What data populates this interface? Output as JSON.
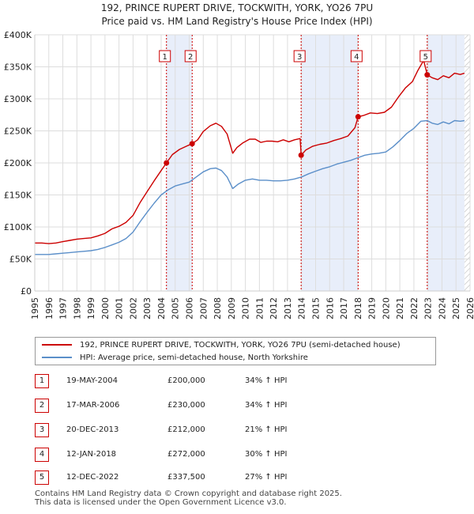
{
  "title": {
    "line1": "192, PRINCE RUPERT DRIVE, TOCKWITH, YORK, YO26 7PU",
    "line2": "Price paid vs. HM Land Registry's House Price Index (HPI)"
  },
  "chart_data": {
    "type": "line",
    "title": "192, PRINCE RUPERT DRIVE, TOCKWITH, YORK, YO26 7PU",
    "subtitle": "Price paid vs. HM Land Registry's House Price Index (HPI)",
    "xlabel": "",
    "ylabel": "",
    "xlim": [
      1995,
      2026
    ],
    "ylim": [
      0,
      400000
    ],
    "x_ticks": [
      "1995",
      "1996",
      "1997",
      "1998",
      "1999",
      "2000",
      "2001",
      "2002",
      "2003",
      "2004",
      "2005",
      "2006",
      "2007",
      "2008",
      "2009",
      "2010",
      "2011",
      "2012",
      "2013",
      "2014",
      "2015",
      "2016",
      "2017",
      "2018",
      "2019",
      "2020",
      "2021",
      "2022",
      "2023",
      "2024",
      "2025",
      "2026"
    ],
    "y_ticks": [
      {
        "value": 0,
        "label": "£0"
      },
      {
        "value": 50000,
        "label": "£50K"
      },
      {
        "value": 100000,
        "label": "£100K"
      },
      {
        "value": 150000,
        "label": "£150K"
      },
      {
        "value": 200000,
        "label": "£200K"
      },
      {
        "value": 250000,
        "label": "£250K"
      },
      {
        "value": 300000,
        "label": "£300K"
      },
      {
        "value": 350000,
        "label": "£350K"
      },
      {
        "value": 400000,
        "label": "£400K"
      }
    ],
    "grid": true,
    "series": [
      {
        "name": "192, PRINCE RUPERT DRIVE, TOCKWITH, YORK, YO26 7PU (semi-detached house)",
        "color": "#cc0000",
        "x": [
          1995,
          1995.5,
          1996,
          1996.5,
          1997,
          1997.5,
          1998,
          1998.5,
          1999,
          1999.5,
          2000,
          2000.5,
          2001,
          2001.5,
          2002,
          2002.5,
          2003,
          2003.5,
          2004,
          2004.38,
          2004.8,
          2005.3,
          2005.8,
          2006.21,
          2006.6,
          2007,
          2007.5,
          2007.9,
          2008.3,
          2008.7,
          2009.1,
          2009.4,
          2009.8,
          2010.3,
          2010.7,
          2011.1,
          2011.5,
          2011.9,
          2012.3,
          2012.7,
          2013.1,
          2013.5,
          2013.9,
          2013.97,
          2014.3,
          2014.8,
          2015.3,
          2015.8,
          2016.3,
          2016.8,
          2017.3,
          2017.8,
          2018.03,
          2018.4,
          2018.9,
          2019.4,
          2019.9,
          2020.4,
          2020.9,
          2021.4,
          2021.9,
          2022.3,
          2022.7,
          2022.95,
          2023.3,
          2023.7,
          2024.1,
          2024.5,
          2024.9,
          2025.3,
          2025.6
        ],
        "y": [
          75000,
          75000,
          74000,
          75000,
          77000,
          79000,
          81000,
          82000,
          83000,
          86000,
          90000,
          97000,
          101000,
          107000,
          118000,
          138000,
          155000,
          172000,
          188000,
          200000,
          213000,
          221000,
          226000,
          230000,
          236000,
          249000,
          258000,
          262000,
          257000,
          245000,
          215000,
          224000,
          231000,
          237000,
          237000,
          232000,
          234000,
          234000,
          233000,
          236000,
          233000,
          236000,
          238000,
          212000,
          220000,
          226000,
          229000,
          231000,
          235000,
          238000,
          242000,
          255000,
          272000,
          274000,
          278000,
          277000,
          279000,
          287000,
          303000,
          317000,
          327000,
          345000,
          360000,
          337500,
          333000,
          330000,
          336000,
          333000,
          340000,
          338000,
          340000
        ]
      },
      {
        "name": "HPI: Average price, semi-detached house, North Yorkshire",
        "color": "#5b8fc9",
        "x": [
          1995,
          1995.5,
          1996,
          1996.5,
          1997,
          1997.5,
          1998,
          1998.5,
          1999,
          1999.5,
          2000,
          2000.5,
          2001,
          2001.5,
          2002,
          2002.5,
          2003,
          2003.5,
          2004,
          2004.5,
          2005,
          2005.5,
          2006,
          2006.5,
          2007,
          2007.5,
          2007.9,
          2008.3,
          2008.7,
          2009.1,
          2009.5,
          2010,
          2010.5,
          2011,
          2011.5,
          2012,
          2012.5,
          2013,
          2013.5,
          2014,
          2014.5,
          2015,
          2015.5,
          2016,
          2016.5,
          2017,
          2017.5,
          2018,
          2018.5,
          2019,
          2019.5,
          2020,
          2020.5,
          2021,
          2021.5,
          2022,
          2022.5,
          2022.95,
          2023.3,
          2023.7,
          2024.1,
          2024.5,
          2024.9,
          2025.3,
          2025.6
        ],
        "y": [
          57000,
          57000,
          57000,
          58000,
          59000,
          60000,
          61000,
          62000,
          63000,
          65000,
          68000,
          72000,
          76000,
          82000,
          92000,
          108000,
          123000,
          137000,
          150000,
          158000,
          164000,
          167000,
          170000,
          178000,
          186000,
          191000,
          192000,
          188000,
          178000,
          160000,
          167000,
          173000,
          175000,
          173000,
          173000,
          172000,
          172000,
          173000,
          175000,
          178000,
          183000,
          187000,
          191000,
          194000,
          198000,
          201000,
          204000,
          208000,
          212000,
          214000,
          215000,
          217000,
          225000,
          235000,
          246000,
          254000,
          265000,
          266000,
          262000,
          260000,
          264000,
          261000,
          266000,
          265000,
          266000
        ]
      }
    ],
    "sales": [
      {
        "num": "1",
        "x": 2004.38,
        "price": 200000
      },
      {
        "num": "2",
        "x": 2006.21,
        "price": 230000
      },
      {
        "num": "3",
        "x": 2013.97,
        "price": 212000
      },
      {
        "num": "4",
        "x": 2018.03,
        "price": 272000
      },
      {
        "num": "5",
        "x": 2022.95,
        "price": 337500
      }
    ],
    "shaded_spans": [
      [
        2004.38,
        2006.21
      ],
      [
        2013.97,
        2018.03
      ],
      [
        2022.95,
        2025.6
      ]
    ],
    "forecast_hatch_from": 2025.6
  },
  "legend": {
    "property": "192, PRINCE RUPERT DRIVE, TOCKWITH, YORK, YO26 7PU (semi-detached house)",
    "hpi": "HPI: Average price, semi-detached house, North Yorkshire",
    "property_color": "#cc0000",
    "hpi_color": "#5b8fc9"
  },
  "sales_table": [
    {
      "num": "1",
      "date": "19-MAY-2004",
      "price": "£200,000",
      "hpi": "34% ↑ HPI"
    },
    {
      "num": "2",
      "date": "17-MAR-2006",
      "price": "£230,000",
      "hpi": "34% ↑ HPI"
    },
    {
      "num": "3",
      "date": "20-DEC-2013",
      "price": "£212,000",
      "hpi": "21% ↑ HPI"
    },
    {
      "num": "4",
      "date": "12-JAN-2018",
      "price": "£272,000",
      "hpi": "30% ↑ HPI"
    },
    {
      "num": "5",
      "date": "12-DEC-2022",
      "price": "£337,500",
      "hpi": "27% ↑ HPI"
    }
  ],
  "footer": {
    "line1": "Contains HM Land Registry data © Crown copyright and database right 2025.",
    "line2": "This data is licensed under the Open Government Licence v3.0."
  }
}
